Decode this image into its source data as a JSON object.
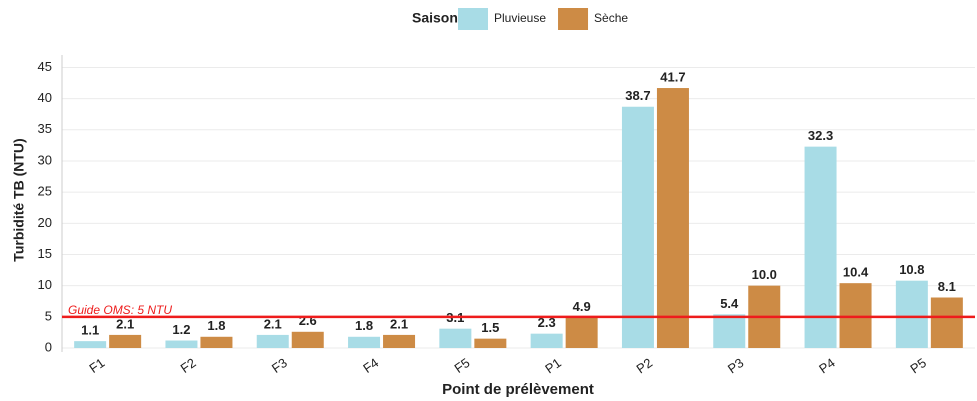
{
  "chart_data": {
    "type": "bar",
    "legend_title": "Saison",
    "x_label": "Point de prélèvement",
    "y_label": "Turbidité TB (NTU)",
    "categories": [
      "F1",
      "F2",
      "F3",
      "F4",
      "F5",
      "P1",
      "P2",
      "P3",
      "P4",
      "P5"
    ],
    "series": [
      {
        "name": "Pluvieuse",
        "color": "#a8dce6",
        "values": [
          1.1,
          1.2,
          2.1,
          1.8,
          3.1,
          2.3,
          38.7,
          5.4,
          32.3,
          10.8
        ],
        "value_labels": [
          "1.1",
          "1.2",
          "2.1",
          "1.8",
          "3.1",
          "2.3",
          "38.7",
          "5.4",
          "32.3",
          "10.8"
        ]
      },
      {
        "name": "Sèche",
        "color": "#cd8b45",
        "values": [
          2.1,
          1.8,
          2.6,
          2.1,
          1.5,
          4.9,
          41.7,
          10.0,
          10.4,
          8.1
        ],
        "value_labels": [
          "2.1",
          "1.8",
          "2.6",
          "2.1",
          "1.5",
          "4.9",
          "41.7",
          "10.0",
          "10.4",
          "8.1"
        ]
      }
    ],
    "reference_line": {
      "value": 5,
      "label": "Guide OMS: 5 NTU",
      "color": "#ee1c1c"
    },
    "ylim": [
      0,
      47
    ],
    "yticks": [
      0,
      5,
      10,
      15,
      20,
      25,
      30,
      35,
      40,
      45
    ],
    "grid": true,
    "legend_position": "top"
  }
}
